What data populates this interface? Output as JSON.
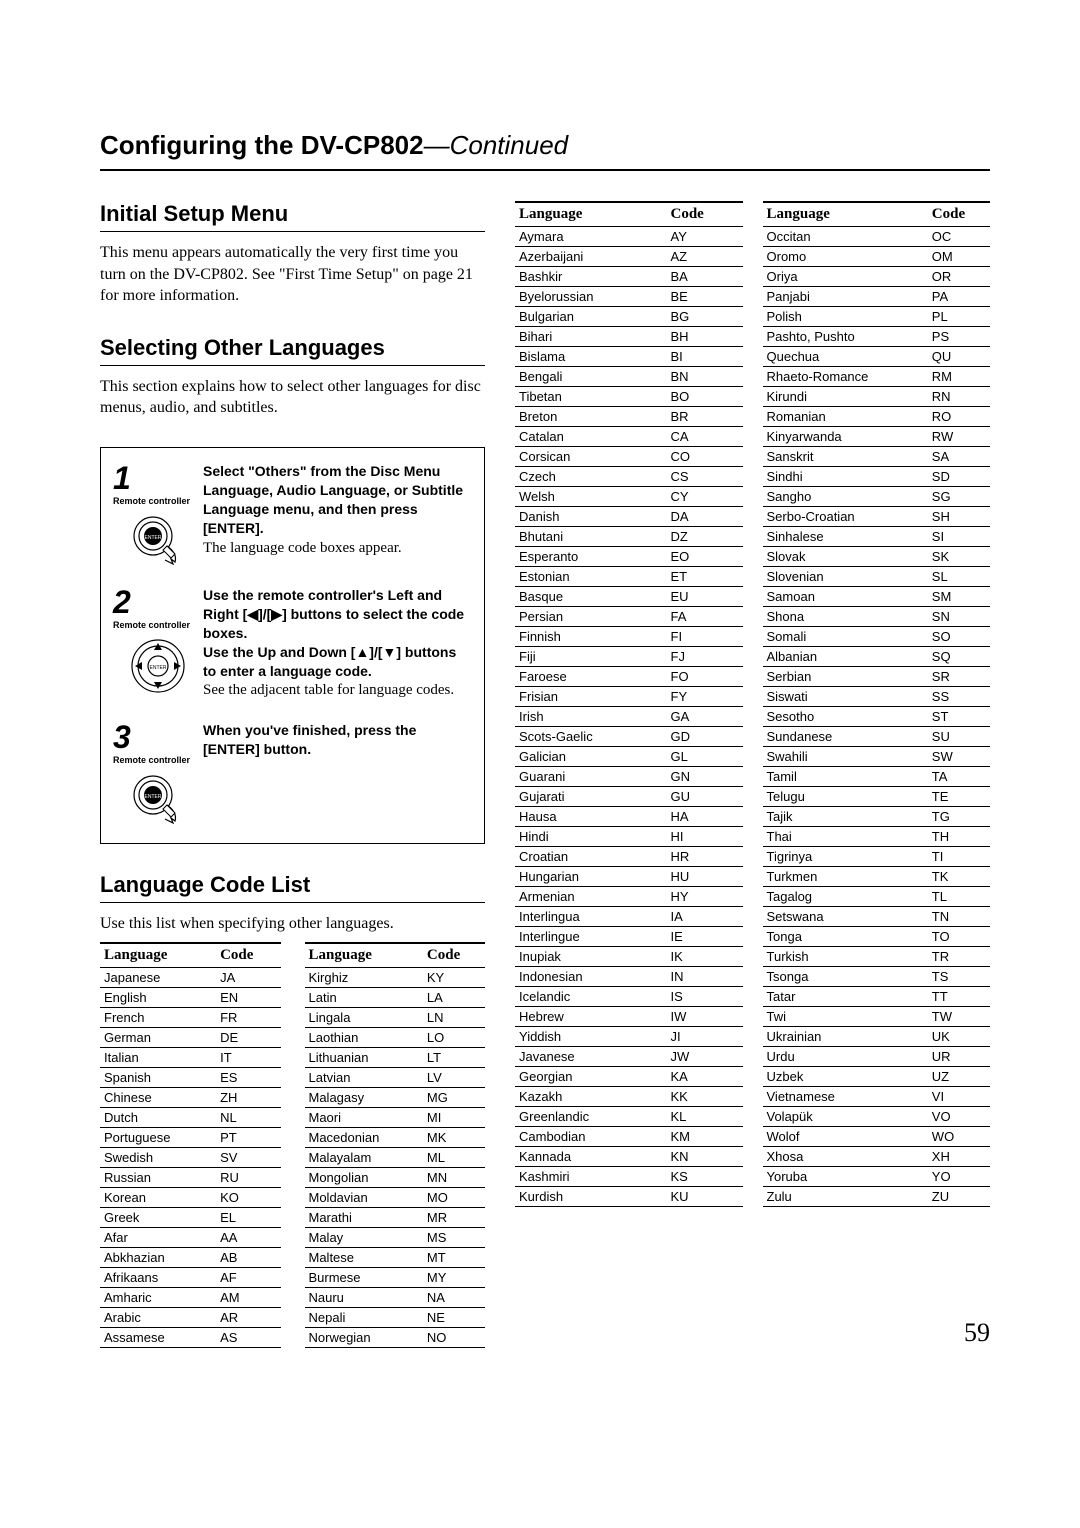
{
  "page_title_prefix": "Configuring the DV-CP802",
  "page_title_suffix": "—Continued",
  "page_number": "59",
  "sections": {
    "initial": {
      "title": "Initial Setup Menu",
      "body": "This menu appears automatically the very first time you turn on the DV-CP802. See \"First Time Setup\" on page 21 for more information."
    },
    "selecting": {
      "title": "Selecting Other Languages",
      "body": "This section explains how to select other languages for disc menus, audio, and subtitles."
    },
    "codelist": {
      "title": "Language Code List",
      "body": "Use this list when specifying other languages."
    }
  },
  "steps": [
    {
      "num": "1",
      "label": "Remote controller",
      "icon": "enter",
      "bold": "Select \"Others\" from the Disc Menu Language, Audio Language, or Subtitle Language menu, and then press [ENTER].",
      "plain": "The language code boxes appear."
    },
    {
      "num": "2",
      "label": "Remote controller",
      "icon": "dpad",
      "bold": "Use the remote controller's Left and Right [◀]/[▶] buttons to select the code boxes.\nUse the Up and Down [▲]/[▼] buttons to enter a language code.",
      "plain": "See the adjacent table for language codes."
    },
    {
      "num": "3",
      "label": "Remote controller",
      "icon": "enter",
      "bold": "When you've finished, press the [ENTER] button.",
      "plain": ""
    }
  ],
  "table_headers": {
    "lang": "Language",
    "code": "Code"
  },
  "tables": {
    "a": [
      [
        "Japanese",
        "JA"
      ],
      [
        "English",
        "EN"
      ],
      [
        "French",
        "FR"
      ],
      [
        "German",
        "DE"
      ],
      [
        "Italian",
        "IT"
      ],
      [
        "Spanish",
        "ES"
      ],
      [
        "Chinese",
        "ZH"
      ],
      [
        "Dutch",
        "NL"
      ],
      [
        "Portuguese",
        "PT"
      ],
      [
        "Swedish",
        "SV"
      ],
      [
        "Russian",
        "RU"
      ],
      [
        "Korean",
        "KO"
      ],
      [
        "Greek",
        "EL"
      ],
      [
        "Afar",
        "AA"
      ],
      [
        "Abkhazian",
        "AB"
      ],
      [
        "Afrikaans",
        "AF"
      ],
      [
        "Amharic",
        "AM"
      ],
      [
        "Arabic",
        "AR"
      ],
      [
        "Assamese",
        "AS"
      ]
    ],
    "b": [
      [
        "Kirghiz",
        "KY"
      ],
      [
        "Latin",
        "LA"
      ],
      [
        "Lingala",
        "LN"
      ],
      [
        "Laothian",
        "LO"
      ],
      [
        "Lithuanian",
        "LT"
      ],
      [
        "Latvian",
        "LV"
      ],
      [
        "Malagasy",
        "MG"
      ],
      [
        "Maori",
        "MI"
      ],
      [
        "Macedonian",
        "MK"
      ],
      [
        "Malayalam",
        "ML"
      ],
      [
        "Mongolian",
        "MN"
      ],
      [
        "Moldavian",
        "MO"
      ],
      [
        "Marathi",
        "MR"
      ],
      [
        "Malay",
        "MS"
      ],
      [
        "Maltese",
        "MT"
      ],
      [
        "Burmese",
        "MY"
      ],
      [
        "Nauru",
        "NA"
      ],
      [
        "Nepali",
        "NE"
      ],
      [
        "Norwegian",
        "NO"
      ]
    ],
    "c": [
      [
        "Aymara",
        "AY"
      ],
      [
        "Azerbaijani",
        "AZ"
      ],
      [
        "Bashkir",
        "BA"
      ],
      [
        "Byelorussian",
        "BE"
      ],
      [
        "Bulgarian",
        "BG"
      ],
      [
        "Bihari",
        "BH"
      ],
      [
        "Bislama",
        "BI"
      ],
      [
        "Bengali",
        "BN"
      ],
      [
        "Tibetan",
        "BO"
      ],
      [
        "Breton",
        "BR"
      ],
      [
        "Catalan",
        "CA"
      ],
      [
        "Corsican",
        "CO"
      ],
      [
        "Czech",
        "CS"
      ],
      [
        "Welsh",
        "CY"
      ],
      [
        "Danish",
        "DA"
      ],
      [
        "Bhutani",
        "DZ"
      ],
      [
        "Esperanto",
        "EO"
      ],
      [
        "Estonian",
        "ET"
      ],
      [
        "Basque",
        "EU"
      ],
      [
        "Persian",
        "FA"
      ],
      [
        "Finnish",
        "FI"
      ],
      [
        "Fiji",
        "FJ"
      ],
      [
        "Faroese",
        "FO"
      ],
      [
        "Frisian",
        "FY"
      ],
      [
        "Irish",
        "GA"
      ],
      [
        "Scots-Gaelic",
        "GD"
      ],
      [
        "Galician",
        "GL"
      ],
      [
        "Guarani",
        "GN"
      ],
      [
        "Gujarati",
        "GU"
      ],
      [
        "Hausa",
        "HA"
      ],
      [
        "Hindi",
        "HI"
      ],
      [
        "Croatian",
        "HR"
      ],
      [
        "Hungarian",
        "HU"
      ],
      [
        "Armenian",
        "HY"
      ],
      [
        "Interlingua",
        "IA"
      ],
      [
        "Interlingue",
        "IE"
      ],
      [
        "Inupiak",
        "IK"
      ],
      [
        "Indonesian",
        "IN"
      ],
      [
        "Icelandic",
        "IS"
      ],
      [
        "Hebrew",
        "IW"
      ],
      [
        "Yiddish",
        "JI"
      ],
      [
        "Javanese",
        "JW"
      ],
      [
        "Georgian",
        "KA"
      ],
      [
        "Kazakh",
        "KK"
      ],
      [
        "Greenlandic",
        "KL"
      ],
      [
        "Cambodian",
        "KM"
      ],
      [
        "Kannada",
        "KN"
      ],
      [
        "Kashmiri",
        "KS"
      ],
      [
        "Kurdish",
        "KU"
      ]
    ],
    "d": [
      [
        "Occitan",
        "OC"
      ],
      [
        "Oromo",
        "OM"
      ],
      [
        "Oriya",
        "OR"
      ],
      [
        "Panjabi",
        "PA"
      ],
      [
        "Polish",
        "PL"
      ],
      [
        "Pashto, Pushto",
        "PS"
      ],
      [
        "Quechua",
        "QU"
      ],
      [
        "Rhaeto-Romance",
        "RM"
      ],
      [
        "Kirundi",
        "RN"
      ],
      [
        "Romanian",
        "RO"
      ],
      [
        "Kinyarwanda",
        "RW"
      ],
      [
        "Sanskrit",
        "SA"
      ],
      [
        "Sindhi",
        "SD"
      ],
      [
        "Sangho",
        "SG"
      ],
      [
        "Serbo-Croatian",
        "SH"
      ],
      [
        "Sinhalese",
        "SI"
      ],
      [
        "Slovak",
        "SK"
      ],
      [
        "Slovenian",
        "SL"
      ],
      [
        "Samoan",
        "SM"
      ],
      [
        "Shona",
        "SN"
      ],
      [
        "Somali",
        "SO"
      ],
      [
        "Albanian",
        "SQ"
      ],
      [
        "Serbian",
        "SR"
      ],
      [
        "Siswati",
        "SS"
      ],
      [
        "Sesotho",
        "ST"
      ],
      [
        "Sundanese",
        "SU"
      ],
      [
        "Swahili",
        "SW"
      ],
      [
        "Tamil",
        "TA"
      ],
      [
        "Telugu",
        "TE"
      ],
      [
        "Tajik",
        "TG"
      ],
      [
        "Thai",
        "TH"
      ],
      [
        "Tigrinya",
        "TI"
      ],
      [
        "Turkmen",
        "TK"
      ],
      [
        "Tagalog",
        "TL"
      ],
      [
        "Setswana",
        "TN"
      ],
      [
        "Tonga",
        "TO"
      ],
      [
        "Turkish",
        "TR"
      ],
      [
        "Tsonga",
        "TS"
      ],
      [
        "Tatar",
        "TT"
      ],
      [
        "Twi",
        "TW"
      ],
      [
        "Ukrainian",
        "UK"
      ],
      [
        "Urdu",
        "UR"
      ],
      [
        "Uzbek",
        "UZ"
      ],
      [
        "Vietnamese",
        "VI"
      ],
      [
        "Volapük",
        "VO"
      ],
      [
        "Wolof",
        "WO"
      ],
      [
        "Xhosa",
        "XH"
      ],
      [
        "Yoruba",
        "YO"
      ],
      [
        "Zulu",
        "ZU"
      ]
    ]
  },
  "colors": {
    "text": "#000000",
    "bg": "#ffffff",
    "rule": "#000000"
  }
}
